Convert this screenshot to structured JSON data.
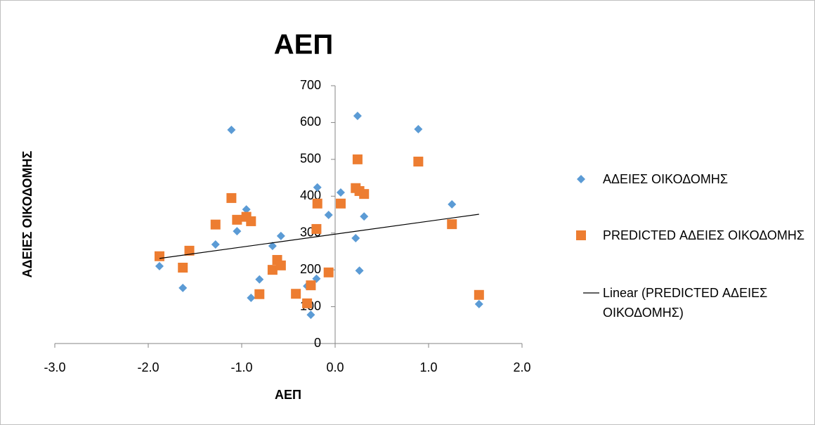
{
  "chart_data": {
    "type": "scatter",
    "title": "ΑΕΠ",
    "x_label": "ΑΕΠ",
    "y_label": "ΑΔΕΙΕΣ ΟΙΚΟΔΟΜΗΣ",
    "xlim": [
      -3,
      2
    ],
    "ylim": [
      0,
      700
    ],
    "xticks": [
      {
        "value": -3,
        "label": "-3.0"
      },
      {
        "value": -2,
        "label": "-2.0"
      },
      {
        "value": -1,
        "label": "-1.0"
      },
      {
        "value": 0,
        "label": "0.0"
      },
      {
        "value": 1,
        "label": "1.0"
      },
      {
        "value": 2,
        "label": "2.0"
      }
    ],
    "yticks": [
      0,
      100,
      200,
      300,
      400,
      500,
      600,
      700
    ],
    "series": [
      {
        "name": "ΑΔΕΙΕΣ ΟΙΚΟΔΟΜΗΣ",
        "color": "#5b9bd5",
        "marker": "diamond",
        "x": [
          -1.88,
          -1.63,
          -1.28,
          -1.11,
          -1.05,
          -0.95,
          -0.9,
          -0.81,
          -0.67,
          -0.58,
          -0.3,
          -0.26,
          -0.2,
          -0.19,
          -0.07,
          0.06,
          0.22,
          0.24,
          0.26,
          0.31,
          0.89,
          1.25,
          1.54
        ],
        "values": [
          210,
          151,
          269,
          580,
          305,
          364,
          124,
          174,
          265,
          292,
          156,
          78,
          176,
          424,
          349,
          410,
          286,
          618,
          198,
          345,
          582,
          378,
          107
        ]
      },
      {
        "name": "PREDICTED ΑΔΕΙΕΣ ΟΙΚΟΔΟΜΗΣ",
        "color": "#ed7d31",
        "marker": "square",
        "x": [
          -1.88,
          -1.63,
          -1.56,
          -1.28,
          -1.11,
          -1.05,
          -0.95,
          -0.9,
          -0.81,
          -0.67,
          -0.62,
          -0.58,
          -0.42,
          -0.3,
          -0.26,
          -0.2,
          -0.19,
          -0.07,
          0.06,
          0.22,
          0.24,
          0.26,
          0.31,
          0.89,
          1.25,
          1.54
        ],
        "values": [
          237,
          206,
          252,
          323,
          395,
          336,
          344,
          332,
          134,
          200,
          227,
          212,
          135,
          109,
          158,
          311,
          380,
          193,
          380,
          422,
          500,
          414,
          406,
          494,
          324,
          132
        ]
      },
      {
        "name": "Linear (PREDICTED ΑΔΕΙΕΣ ΟΙΚΟΔΟΜΗΣ)",
        "color": "#000000",
        "marker": "line",
        "x": [
          -1.88,
          1.54
        ],
        "values": [
          231,
          351
        ]
      }
    ]
  }
}
